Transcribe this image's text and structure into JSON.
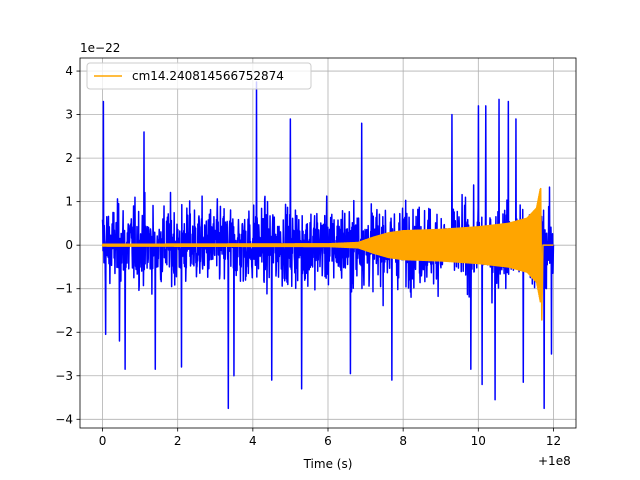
{
  "chart_data": {
    "type": "line",
    "title": "",
    "xlabel": "Time (s)",
    "ylabel": "",
    "x_offset_label": "+1e8",
    "y_scale_label": "1e−22",
    "xlim": [
      -0.6,
      12.6
    ],
    "ylim": [
      -4.2,
      4.3
    ],
    "x_ticks": [
      0,
      2,
      4,
      6,
      8,
      10,
      12
    ],
    "y_ticks": [
      -4,
      -3,
      -2,
      -1,
      0,
      1,
      2,
      3,
      4
    ],
    "x_tick_labels": [
      "0",
      "2",
      "4",
      "6",
      "8",
      "10",
      "12"
    ],
    "y_tick_labels": [
      "−4",
      "−3",
      "−2",
      "−1",
      "0",
      "1",
      "2",
      "3",
      "4"
    ],
    "grid": true,
    "legend": {
      "placement": "top-left",
      "entries": [
        "cm14.240814566752874"
      ]
    },
    "series": [
      {
        "role": "noise",
        "color": "#0000ff",
        "x_range": [
          0.0,
          12.0
        ],
        "typical_amplitude": 2.1,
        "peaks": [
          {
            "x": 0.02,
            "y": 3.3
          },
          {
            "x": 0.08,
            "y": -2.05
          },
          {
            "x": 0.45,
            "y": -2.2
          },
          {
            "x": 0.6,
            "y": -2.85
          },
          {
            "x": 1.1,
            "y": 2.6
          },
          {
            "x": 1.4,
            "y": -2.85
          },
          {
            "x": 2.1,
            "y": -2.8
          },
          {
            "x": 3.35,
            "y": -3.75
          },
          {
            "x": 3.5,
            "y": -3.0
          },
          {
            "x": 4.1,
            "y": 3.75
          },
          {
            "x": 4.5,
            "y": -3.1
          },
          {
            "x": 5.0,
            "y": 2.9
          },
          {
            "x": 5.3,
            "y": -3.3
          },
          {
            "x": 6.6,
            "y": -2.95
          },
          {
            "x": 6.9,
            "y": 2.8
          },
          {
            "x": 7.7,
            "y": -3.1
          },
          {
            "x": 9.3,
            "y": 3.0
          },
          {
            "x": 9.8,
            "y": -2.85
          },
          {
            "x": 10.0,
            "y": 3.2
          },
          {
            "x": 10.1,
            "y": -3.2
          },
          {
            "x": 10.2,
            "y": 3.2
          },
          {
            "x": 10.45,
            "y": -3.55
          },
          {
            "x": 10.55,
            "y": 3.35
          },
          {
            "x": 10.8,
            "y": 3.3
          },
          {
            "x": 11.0,
            "y": 2.9
          },
          {
            "x": 11.2,
            "y": -3.15
          },
          {
            "x": 11.75,
            "y": -3.75
          },
          {
            "x": 11.95,
            "y": -2.5
          }
        ]
      },
      {
        "role": "template",
        "name": "cm14.240814566752874",
        "color": "#ffa500",
        "envelope": [
          {
            "x": 0.0,
            "y": 0.02
          },
          {
            "x": 6.0,
            "y": 0.03
          },
          {
            "x": 6.8,
            "y": 0.06
          },
          {
            "x": 7.2,
            "y": 0.18
          },
          {
            "x": 7.6,
            "y": 0.28
          },
          {
            "x": 8.0,
            "y": 0.33
          },
          {
            "x": 9.0,
            "y": 0.36
          },
          {
            "x": 10.0,
            "y": 0.42
          },
          {
            "x": 10.8,
            "y": 0.5
          },
          {
            "x": 11.3,
            "y": 0.62
          },
          {
            "x": 11.55,
            "y": 0.85
          },
          {
            "x": 11.65,
            "y": 1.3
          },
          {
            "x": 11.7,
            "y": -1.72
          },
          {
            "x": 11.72,
            "y": 0.02
          },
          {
            "x": 12.0,
            "y": 0.0
          }
        ]
      }
    ]
  }
}
